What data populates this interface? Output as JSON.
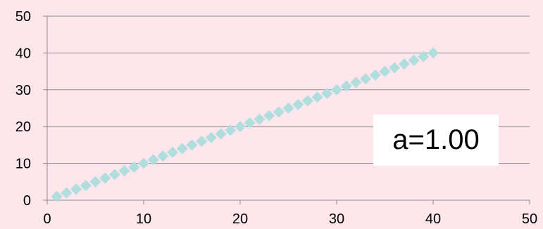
{
  "chart_data": {
    "type": "scatter",
    "title": "",
    "xlabel": "",
    "ylabel": "",
    "xlim": [
      0,
      50
    ],
    "ylim": [
      0,
      50
    ],
    "x_ticks": [
      0,
      10,
      20,
      30,
      40,
      50
    ],
    "y_ticks": [
      0,
      10,
      20,
      30,
      40,
      50
    ],
    "grid": "horizontal",
    "marker": "diamond",
    "series_color": "#b0dede",
    "background_color": "#fde6ec",
    "series": [
      {
        "x": [
          1,
          2,
          3,
          4,
          5,
          6,
          7,
          8,
          9,
          10,
          11,
          12,
          13,
          14,
          15,
          16,
          17,
          18,
          19,
          20,
          21,
          22,
          23,
          24,
          25,
          26,
          27,
          28,
          29,
          30,
          31,
          32,
          33,
          34,
          35,
          36,
          37,
          38,
          39,
          40
        ],
        "y": [
          1,
          2,
          3,
          4,
          5,
          6,
          7,
          8,
          9,
          10,
          11,
          12,
          13,
          14,
          15,
          16,
          17,
          18,
          19,
          20,
          21,
          22,
          23,
          24,
          25,
          26,
          27,
          28,
          29,
          30,
          31,
          32,
          33,
          34,
          35,
          36,
          37,
          38,
          39,
          40
        ]
      }
    ],
    "annotations": [
      {
        "text": "a=1.00"
      }
    ]
  }
}
